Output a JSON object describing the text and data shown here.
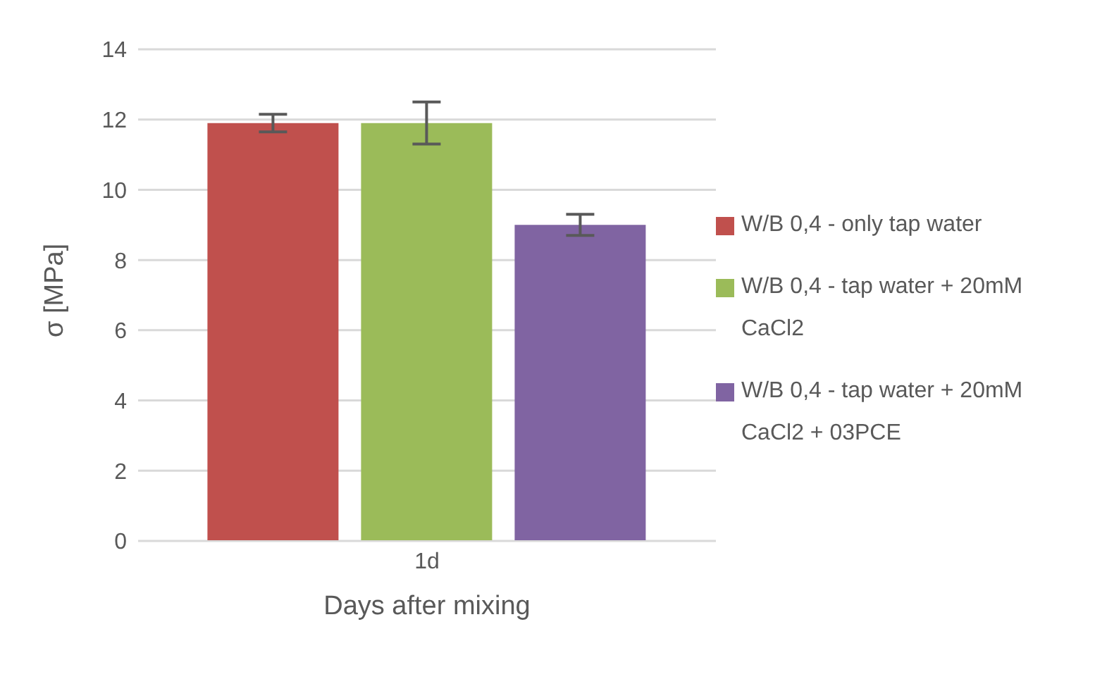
{
  "chart_data": {
    "type": "bar",
    "xlabel": "Days after mixing",
    "ylabel": "σ [MPa]",
    "categories": [
      "1d"
    ],
    "series": [
      {
        "name": "W/B 0,4 - only tap water",
        "color": "#c0504d",
        "values": [
          11.9
        ],
        "errors": [
          0.25
        ]
      },
      {
        "name": "W/B 0,4 - tap water + 20mM CaCl2",
        "color": "#9bbb59",
        "values": [
          11.9
        ],
        "errors": [
          0.6
        ]
      },
      {
        "name": "W/B 0,4 - tap water + 20mM CaCl2 + 03PCE",
        "color": "#8064a2",
        "values": [
          9.0
        ],
        "errors": [
          0.3
        ]
      }
    ],
    "ylim": [
      0,
      14
    ],
    "yticks": [
      0,
      2,
      4,
      6,
      8,
      10,
      12,
      14
    ],
    "grid": "y",
    "legend": "right"
  }
}
